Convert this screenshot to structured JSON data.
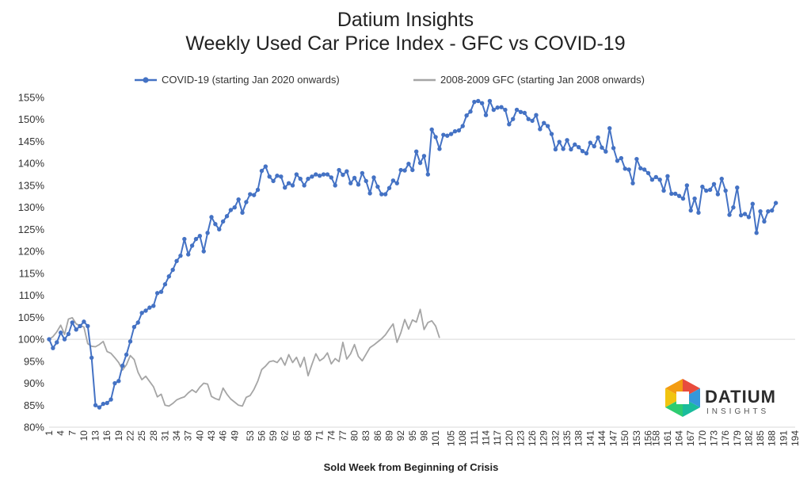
{
  "chart_data": {
    "type": "line",
    "title": [
      "Datium Insights",
      "Weekly Used Car Price Index - GFC vs COVID-19"
    ],
    "xlabel": "Sold Week from Beginning of Crisis",
    "ylabel": "",
    "ylim": [
      80,
      155
    ],
    "yticks": [
      "80%",
      "85%",
      "90%",
      "95%",
      "100%",
      "105%",
      "110%",
      "115%",
      "120%",
      "125%",
      "130%",
      "135%",
      "140%",
      "145%",
      "150%",
      "155%"
    ],
    "xticks": [
      "1",
      "4",
      "7",
      "10",
      "13",
      "16",
      "19",
      "22",
      "25",
      "28",
      "31",
      "34",
      "37",
      "40",
      "43",
      "46",
      "49",
      "53",
      "56",
      "59",
      "62",
      "65",
      "68",
      "71",
      "74",
      "77",
      "80",
      "83",
      "86",
      "89",
      "92",
      "95",
      "98",
      "101",
      "105",
      "108",
      "111",
      "114",
      "117",
      "120",
      "123",
      "126",
      "129",
      "132",
      "135",
      "138",
      "141",
      "144",
      "147",
      "150",
      "153",
      "156",
      "158",
      "161",
      "164",
      "167",
      "170",
      "173",
      "176",
      "179",
      "182",
      "185",
      "188",
      "191",
      "194"
    ],
    "xrange": [
      1,
      194
    ],
    "reference_line": 100,
    "legend_position": "top",
    "series": [
      {
        "name": "COVID-19 (starting Jan 2020 onwards)",
        "color": "#4472c4",
        "marker": "circle",
        "x_start": 1,
        "values": [
          100,
          98,
          99.3,
          101.5,
          100,
          101.2,
          103.8,
          102.2,
          103,
          104,
          103,
          95.8,
          85,
          84.5,
          85.3,
          85.5,
          86.3,
          90,
          90.5,
          94,
          96.5,
          99.5,
          102.8,
          103.8,
          106,
          106.5,
          107.2,
          107.6,
          110.5,
          110.8,
          112.5,
          114.3,
          115.8,
          117.8,
          119,
          122.8,
          119.3,
          121.3,
          122.8,
          123.5,
          120,
          124.2,
          127.8,
          126.2,
          125,
          126.8,
          128,
          129.4,
          130,
          131.8,
          128.8,
          131.2,
          133,
          132.8,
          134,
          138.3,
          139.3,
          137,
          136,
          137.2,
          137,
          134.5,
          135.5,
          135,
          137.5,
          136.5,
          135,
          136.5,
          137,
          137.5,
          137.2,
          137.5,
          137.5,
          136.8,
          135,
          138.5,
          137.4,
          138.2,
          135.5,
          136.7,
          135.2,
          137.8,
          136,
          133.2,
          136.8,
          134.7,
          133,
          133,
          134.4,
          136.1,
          135.5,
          138.5,
          138.4,
          139.9,
          138.5,
          142.7,
          140.1,
          141.7,
          137.5,
          147.7,
          146,
          143.3,
          146.5,
          146.3,
          146.7,
          147.3,
          147.5,
          148.5,
          150.9,
          151.8,
          154,
          154.2,
          153.7,
          151,
          154.2,
          152.2,
          152.7,
          152.8,
          152.2,
          148.9,
          150.1,
          152.2,
          151.7,
          151.5,
          150.1,
          149.7,
          151,
          147.8,
          149.2,
          148.5,
          146.7,
          143.2,
          144.9,
          143.3,
          145.3,
          143.2,
          144.3,
          143.7,
          142.8,
          142.3,
          144.7,
          143.9,
          145.9,
          143.6,
          142.7,
          148,
          143.5,
          140.6,
          141.2,
          138.8,
          138.6,
          135.5,
          141,
          138.9,
          138.6,
          137.8,
          136.3,
          136.9,
          136.3,
          133.8,
          137.1,
          133.1,
          133.1,
          132.6,
          132,
          135,
          129.3,
          132,
          128.8,
          134.7,
          133.8,
          134,
          135.3,
          133,
          136.5,
          133.8,
          128.3,
          130,
          134.5,
          128.2,
          128.5,
          127.8,
          130.8,
          124.2,
          129.1,
          126.8,
          129.1,
          129.3,
          131
        ]
      },
      {
        "name": "2008-2009 GFC (starting Jan 2008 onwards)",
        "color": "#a5a5a5",
        "marker": "none",
        "x_start": 1,
        "values": [
          100,
          100.6,
          101.7,
          103.2,
          101.1,
          104.6,
          104.9,
          103.5,
          103.1,
          102.8,
          99,
          98.4,
          98.3,
          98.8,
          99.5,
          97.2,
          96.8,
          95.8,
          94.7,
          93,
          94.2,
          96.3,
          95.4,
          92.5,
          90.8,
          91.6,
          90.4,
          89.2,
          86.9,
          87.5,
          85,
          84.8,
          85.4,
          86.2,
          86.6,
          86.9,
          87.8,
          88.5,
          87.9,
          89.1,
          90,
          89.8,
          87,
          86.5,
          86.2,
          88.9,
          87.5,
          86.4,
          85.7,
          85,
          84.8,
          86.8,
          87.2,
          88.6,
          90.5,
          93.1,
          93.9,
          94.9,
          95.1,
          94.7,
          95.8,
          94.1,
          96.5,
          94.7,
          95.9,
          93.7,
          95.9,
          91.7,
          94.3,
          96.7,
          95.1,
          95.7,
          96.9,
          94.4,
          95.6,
          94.9,
          99.3,
          95.5,
          96.7,
          98.8,
          96.1,
          95.1,
          96.6,
          98.1,
          98.7,
          99.4,
          100.1,
          101,
          102.3,
          103.5,
          99.3,
          101.5,
          104.5,
          102.3,
          104.4,
          103.9,
          106.8,
          102.2,
          103.8,
          104.2,
          103,
          100.3
        ]
      }
    ]
  },
  "logo": {
    "word": "DATIUM",
    "sub": "INSIGHTS",
    "colors": [
      "#e84c3d",
      "#f39c12",
      "#f1c40f",
      "#2ecc71",
      "#1abc9c",
      "#3498db",
      "#8e44ad",
      "#c0392b"
    ]
  }
}
